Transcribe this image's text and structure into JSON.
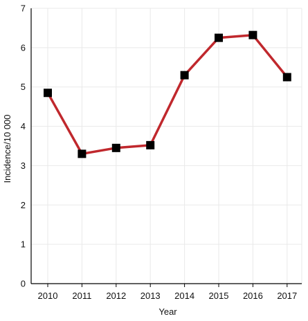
{
  "chart_data": {
    "type": "line",
    "title": "",
    "xlabel": "Year",
    "ylabel": "Incidence/10 000",
    "categories": [
      "2010",
      "2011",
      "2012",
      "2013",
      "2014",
      "2015",
      "2016",
      "2017"
    ],
    "series": [
      {
        "values": [
          4.85,
          3.3,
          3.45,
          3.52,
          5.3,
          6.25,
          6.32,
          5.25
        ]
      }
    ],
    "ylim": [
      0,
      7
    ],
    "yticks": [
      "0",
      "1",
      "2",
      "3",
      "4",
      "5",
      "6",
      "7"
    ],
    "grid": true,
    "legend": "none",
    "colors": {
      "line": "#c0282d",
      "marker": "#000000",
      "grid": "#e9e9e9",
      "axis": "#000000"
    }
  }
}
